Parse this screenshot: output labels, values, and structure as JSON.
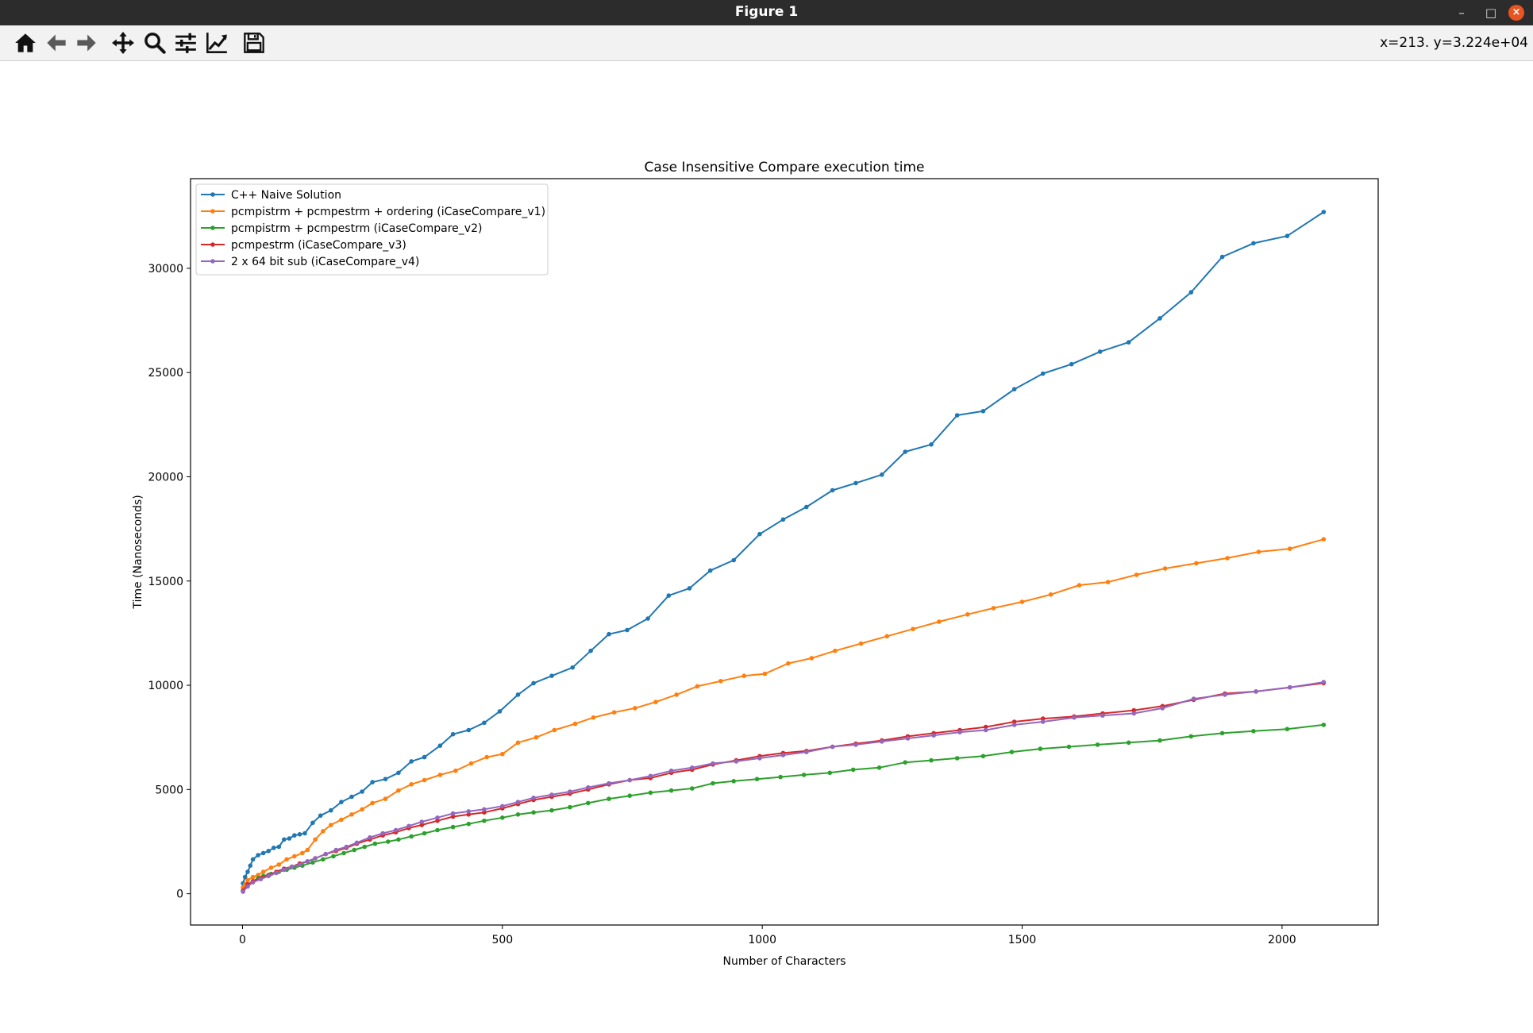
{
  "window": {
    "title": "Figure 1",
    "minimize_label": "–",
    "maximize_label": "□",
    "close_label": "×"
  },
  "toolbar": {
    "tools": [
      {
        "name": "home-icon"
      },
      {
        "name": "back-arrow-icon"
      },
      {
        "name": "forward-arrow-icon"
      },
      {
        "name": "pan-move-icon"
      },
      {
        "name": "zoom-magnifier-icon"
      },
      {
        "name": "configure-subplots-icon"
      },
      {
        "name": "edit-axis-icon"
      },
      {
        "name": "save-floppy-icon"
      }
    ],
    "coordinates": "x=213. y=3.224e+04"
  },
  "chart_data": {
    "type": "line",
    "title": "Case Insensitive Compare execution time",
    "xlabel": "Number of Characters",
    "ylabel": "Time (Nanoseconds)",
    "xlim": [
      -100,
      2185
    ],
    "ylim": [
      -1500,
      34300
    ],
    "xticks": [
      0,
      500,
      1000,
      1500,
      2000
    ],
    "yticks": [
      0,
      5000,
      10000,
      15000,
      20000,
      25000,
      30000
    ],
    "grid": false,
    "legend_position": "upper-left",
    "series": [
      {
        "name": "C++ Naive Solution",
        "color": "#1f77b4",
        "points": [
          [
            1,
            500
          ],
          [
            5,
            800
          ],
          [
            10,
            1050
          ],
          [
            15,
            1350
          ],
          [
            20,
            1650
          ],
          [
            30,
            1850
          ],
          [
            40,
            1950
          ],
          [
            50,
            2050
          ],
          [
            60,
            2200
          ],
          [
            70,
            2250
          ],
          [
            80,
            2600
          ],
          [
            90,
            2650
          ],
          [
            100,
            2800
          ],
          [
            110,
            2850
          ],
          [
            120,
            2900
          ],
          [
            135,
            3400
          ],
          [
            150,
            3750
          ],
          [
            170,
            4000
          ],
          [
            190,
            4400
          ],
          [
            210,
            4650
          ],
          [
            230,
            4900
          ],
          [
            250,
            5350
          ],
          [
            275,
            5500
          ],
          [
            300,
            5800
          ],
          [
            325,
            6350
          ],
          [
            350,
            6550
          ],
          [
            380,
            7100
          ],
          [
            405,
            7650
          ],
          [
            435,
            7850
          ],
          [
            465,
            8200
          ],
          [
            495,
            8750
          ],
          [
            530,
            9550
          ],
          [
            560,
            10100
          ],
          [
            595,
            10450
          ],
          [
            635,
            10850
          ],
          [
            670,
            11650
          ],
          [
            705,
            12450
          ],
          [
            740,
            12650
          ],
          [
            780,
            13200
          ],
          [
            820,
            14300
          ],
          [
            860,
            14650
          ],
          [
            900,
            15500
          ],
          [
            945,
            16000
          ],
          [
            995,
            17250
          ],
          [
            1040,
            17950
          ],
          [
            1085,
            18550
          ],
          [
            1135,
            19350
          ],
          [
            1180,
            19700
          ],
          [
            1230,
            20100
          ],
          [
            1275,
            21200
          ],
          [
            1325,
            21550
          ],
          [
            1375,
            22950
          ],
          [
            1425,
            23150
          ],
          [
            1485,
            24200
          ],
          [
            1540,
            24950
          ],
          [
            1595,
            25400
          ],
          [
            1650,
            26000
          ],
          [
            1705,
            26450
          ],
          [
            1765,
            27600
          ],
          [
            1825,
            28850
          ],
          [
            1885,
            30550
          ],
          [
            1945,
            31200
          ],
          [
            2010,
            31550
          ],
          [
            2080,
            32700
          ]
        ]
      },
      {
        "name": "pcmpistrm + pcmpestrm + ordering (iCaseCompare_v1)",
        "color": "#ff7f0e",
        "points": [
          [
            1,
            300
          ],
          [
            5,
            450
          ],
          [
            10,
            650
          ],
          [
            20,
            800
          ],
          [
            30,
            900
          ],
          [
            40,
            1050
          ],
          [
            55,
            1250
          ],
          [
            70,
            1400
          ],
          [
            85,
            1650
          ],
          [
            100,
            1800
          ],
          [
            115,
            1950
          ],
          [
            125,
            2100
          ],
          [
            140,
            2600
          ],
          [
            155,
            3000
          ],
          [
            170,
            3300
          ],
          [
            190,
            3550
          ],
          [
            210,
            3800
          ],
          [
            230,
            4050
          ],
          [
            250,
            4350
          ],
          [
            275,
            4550
          ],
          [
            300,
            4950
          ],
          [
            325,
            5250
          ],
          [
            350,
            5450
          ],
          [
            380,
            5700
          ],
          [
            410,
            5900
          ],
          [
            440,
            6250
          ],
          [
            470,
            6550
          ],
          [
            500,
            6700
          ],
          [
            530,
            7250
          ],
          [
            565,
            7500
          ],
          [
            600,
            7850
          ],
          [
            640,
            8150
          ],
          [
            675,
            8450
          ],
          [
            715,
            8700
          ],
          [
            755,
            8900
          ],
          [
            795,
            9200
          ],
          [
            835,
            9550
          ],
          [
            875,
            9950
          ],
          [
            920,
            10200
          ],
          [
            965,
            10450
          ],
          [
            1005,
            10550
          ],
          [
            1050,
            11050
          ],
          [
            1095,
            11300
          ],
          [
            1140,
            11650
          ],
          [
            1190,
            12000
          ],
          [
            1240,
            12350
          ],
          [
            1290,
            12700
          ],
          [
            1340,
            13050
          ],
          [
            1395,
            13400
          ],
          [
            1445,
            13700
          ],
          [
            1500,
            14000
          ],
          [
            1555,
            14350
          ],
          [
            1610,
            14800
          ],
          [
            1665,
            14950
          ],
          [
            1720,
            15300
          ],
          [
            1775,
            15600
          ],
          [
            1835,
            15850
          ],
          [
            1895,
            16100
          ],
          [
            1955,
            16400
          ],
          [
            2015,
            16550
          ],
          [
            2080,
            17000
          ]
        ]
      },
      {
        "name": "pcmpistrm + pcmpestrm (iCaseCompare_v2)",
        "color": "#2ca02c",
        "points": [
          [
            1,
            150
          ],
          [
            10,
            400
          ],
          [
            20,
            600
          ],
          [
            30,
            750
          ],
          [
            40,
            850
          ],
          [
            55,
            950
          ],
          [
            70,
            1050
          ],
          [
            85,
            1150
          ],
          [
            100,
            1250
          ],
          [
            115,
            1350
          ],
          [
            135,
            1500
          ],
          [
            155,
            1650
          ],
          [
            175,
            1800
          ],
          [
            195,
            1950
          ],
          [
            215,
            2100
          ],
          [
            235,
            2250
          ],
          [
            255,
            2400
          ],
          [
            280,
            2500
          ],
          [
            300,
            2600
          ],
          [
            325,
            2750
          ],
          [
            350,
            2900
          ],
          [
            375,
            3050
          ],
          [
            405,
            3200
          ],
          [
            435,
            3350
          ],
          [
            465,
            3500
          ],
          [
            500,
            3650
          ],
          [
            530,
            3800
          ],
          [
            560,
            3900
          ],
          [
            595,
            4000
          ],
          [
            630,
            4150
          ],
          [
            665,
            4350
          ],
          [
            705,
            4550
          ],
          [
            745,
            4700
          ],
          [
            785,
            4850
          ],
          [
            825,
            4950
          ],
          [
            865,
            5050
          ],
          [
            905,
            5300
          ],
          [
            945,
            5400
          ],
          [
            990,
            5500
          ],
          [
            1035,
            5600
          ],
          [
            1080,
            5700
          ],
          [
            1130,
            5800
          ],
          [
            1175,
            5950
          ],
          [
            1225,
            6050
          ],
          [
            1275,
            6300
          ],
          [
            1325,
            6400
          ],
          [
            1375,
            6500
          ],
          [
            1425,
            6600
          ],
          [
            1480,
            6800
          ],
          [
            1535,
            6950
          ],
          [
            1590,
            7050
          ],
          [
            1645,
            7150
          ],
          [
            1705,
            7250
          ],
          [
            1765,
            7350
          ],
          [
            1825,
            7550
          ],
          [
            1885,
            7700
          ],
          [
            1945,
            7800
          ],
          [
            2010,
            7900
          ],
          [
            2080,
            8100
          ]
        ]
      },
      {
        "name": "pcmpestrm (iCaseCompare_v3)",
        "color": "#d62728",
        "points": [
          [
            1,
            150
          ],
          [
            10,
            450
          ],
          [
            20,
            600
          ],
          [
            35,
            750
          ],
          [
            50,
            900
          ],
          [
            65,
            1050
          ],
          [
            80,
            1200
          ],
          [
            95,
            1300
          ],
          [
            110,
            1450
          ],
          [
            125,
            1550
          ],
          [
            140,
            1700
          ],
          [
            160,
            1900
          ],
          [
            180,
            2050
          ],
          [
            200,
            2200
          ],
          [
            220,
            2400
          ],
          [
            245,
            2600
          ],
          [
            270,
            2800
          ],
          [
            295,
            2950
          ],
          [
            320,
            3150
          ],
          [
            345,
            3300
          ],
          [
            375,
            3500
          ],
          [
            405,
            3700
          ],
          [
            435,
            3800
          ],
          [
            465,
            3900
          ],
          [
            500,
            4100
          ],
          [
            530,
            4300
          ],
          [
            560,
            4500
          ],
          [
            595,
            4650
          ],
          [
            630,
            4800
          ],
          [
            665,
            5000
          ],
          [
            705,
            5250
          ],
          [
            745,
            5450
          ],
          [
            785,
            5550
          ],
          [
            825,
            5800
          ],
          [
            865,
            5950
          ],
          [
            905,
            6200
          ],
          [
            950,
            6400
          ],
          [
            995,
            6600
          ],
          [
            1040,
            6750
          ],
          [
            1085,
            6850
          ],
          [
            1135,
            7050
          ],
          [
            1180,
            7200
          ],
          [
            1230,
            7350
          ],
          [
            1280,
            7550
          ],
          [
            1330,
            7700
          ],
          [
            1380,
            7850
          ],
          [
            1430,
            8000
          ],
          [
            1485,
            8250
          ],
          [
            1540,
            8400
          ],
          [
            1600,
            8500
          ],
          [
            1655,
            8650
          ],
          [
            1715,
            8800
          ],
          [
            1770,
            9000
          ],
          [
            1830,
            9300
          ],
          [
            1890,
            9600
          ],
          [
            1950,
            9700
          ],
          [
            2015,
            9900
          ],
          [
            2080,
            10100
          ]
        ]
      },
      {
        "name": "2 x 64 bit sub (iCaseCompare_v4)",
        "color": "#9467bd",
        "points": [
          [
            1,
            100
          ],
          [
            10,
            350
          ],
          [
            20,
            550
          ],
          [
            35,
            700
          ],
          [
            50,
            850
          ],
          [
            65,
            1000
          ],
          [
            80,
            1150
          ],
          [
            95,
            1300
          ],
          [
            110,
            1400
          ],
          [
            125,
            1550
          ],
          [
            140,
            1700
          ],
          [
            160,
            1900
          ],
          [
            180,
            2100
          ],
          [
            200,
            2250
          ],
          [
            220,
            2450
          ],
          [
            245,
            2700
          ],
          [
            270,
            2900
          ],
          [
            295,
            3050
          ],
          [
            320,
            3250
          ],
          [
            345,
            3450
          ],
          [
            375,
            3650
          ],
          [
            405,
            3850
          ],
          [
            435,
            3950
          ],
          [
            465,
            4050
          ],
          [
            500,
            4200
          ],
          [
            530,
            4400
          ],
          [
            560,
            4600
          ],
          [
            595,
            4750
          ],
          [
            630,
            4900
          ],
          [
            665,
            5100
          ],
          [
            705,
            5300
          ],
          [
            745,
            5450
          ],
          [
            785,
            5650
          ],
          [
            825,
            5900
          ],
          [
            865,
            6050
          ],
          [
            905,
            6250
          ],
          [
            950,
            6350
          ],
          [
            995,
            6500
          ],
          [
            1040,
            6650
          ],
          [
            1085,
            6800
          ],
          [
            1135,
            7050
          ],
          [
            1180,
            7150
          ],
          [
            1230,
            7300
          ],
          [
            1280,
            7450
          ],
          [
            1330,
            7600
          ],
          [
            1380,
            7750
          ],
          [
            1430,
            7850
          ],
          [
            1485,
            8100
          ],
          [
            1540,
            8250
          ],
          [
            1600,
            8450
          ],
          [
            1655,
            8550
          ],
          [
            1715,
            8650
          ],
          [
            1770,
            8900
          ],
          [
            1830,
            9350
          ],
          [
            1890,
            9550
          ],
          [
            1950,
            9700
          ],
          [
            2015,
            9900
          ],
          [
            2080,
            10150
          ]
        ]
      }
    ]
  }
}
